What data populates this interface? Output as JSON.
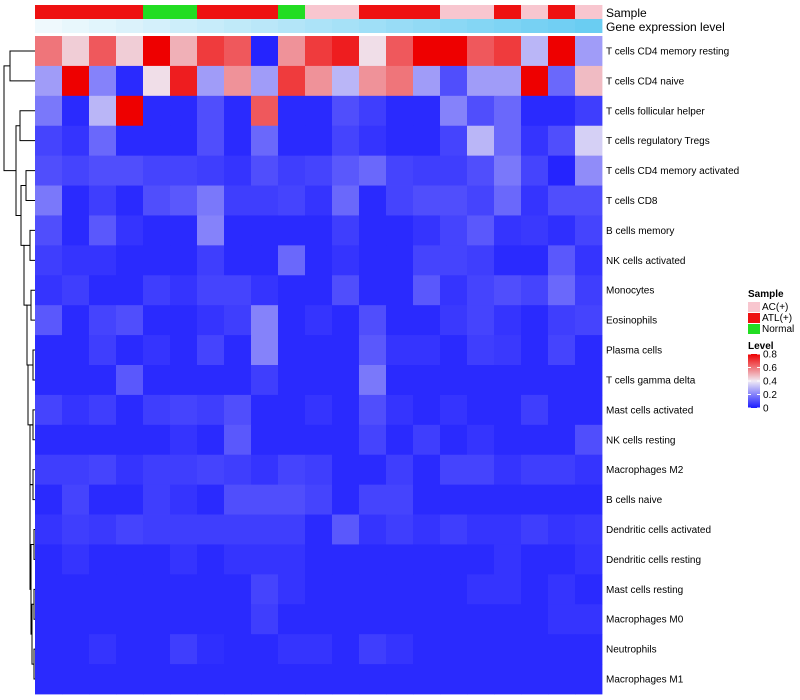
{
  "chart_data": {
    "type": "heatmap",
    "title": "",
    "annotation_rows": [
      "Sample",
      "Gene expression level"
    ],
    "sample_annotation": [
      "ATL(+)",
      "ATL(+)",
      "ATL(+)",
      "ATL(+)",
      "Normal",
      "Normal",
      "ATL(+)",
      "ATL(+)",
      "ATL(+)",
      "Normal",
      "AC(+)",
      "AC(+)",
      "ATL(+)",
      "ATL(+)",
      "ATL(+)",
      "AC(+)",
      "AC(+)",
      "ATL(+)",
      "AC(+)",
      "ATL(+)",
      "AC(+)"
    ],
    "expression_annotation": [
      0.02,
      0.06,
      0.1,
      0.14,
      0.18,
      0.22,
      0.26,
      0.3,
      0.34,
      0.38,
      0.42,
      0.46,
      0.5,
      0.54,
      0.58,
      0.62,
      0.66,
      0.7,
      0.74,
      0.78,
      0.82
    ],
    "sample_colors": {
      "AC(+)": "#f8c6cf",
      "ATL(+)": "#ee1111",
      "Normal": "#22dd22"
    },
    "expression_colors": [
      "#f2fafd",
      "#4cc3f0"
    ],
    "rows": [
      "T cells CD4 memory resting",
      "T cells CD4 naive",
      "T cells follicular helper",
      "T cells regulatory  Tregs",
      "T cells CD4 memory activated",
      "T cells CD8",
      "B cells memory",
      "NK cells activated",
      "Monocytes",
      "Eosinophils",
      "Plasma cells",
      "T cells gamma delta",
      "Mast cells activated",
      "NK cells resting",
      "Macrophages M2",
      "B cells naive",
      "Dendritic cells activated",
      "Dendritic cells resting",
      "Mast cells resting",
      "Macrophages M0",
      "Neutrophils",
      "Macrophages M1"
    ],
    "values": [
      [
        0.6,
        0.45,
        0.65,
        0.45,
        0.8,
        0.5,
        0.7,
        0.65,
        0.02,
        0.55,
        0.7,
        0.75,
        0.42,
        0.65,
        0.8,
        0.8,
        0.65,
        0.7,
        0.3,
        0.85,
        0.25
      ],
      [
        0.25,
        0.8,
        0.2,
        0.03,
        0.42,
        0.75,
        0.25,
        0.55,
        0.25,
        0.7,
        0.55,
        0.3,
        0.55,
        0.6,
        0.25,
        0.1,
        0.25,
        0.25,
        0.85,
        0.15,
        0.48
      ],
      [
        0.18,
        0.03,
        0.3,
        0.8,
        0.03,
        0.03,
        0.1,
        0.03,
        0.65,
        0.03,
        0.03,
        0.1,
        0.07,
        0.03,
        0.03,
        0.2,
        0.1,
        0.15,
        0.03,
        0.03,
        0.07
      ],
      [
        0.08,
        0.05,
        0.15,
        0.03,
        0.03,
        0.03,
        0.1,
        0.03,
        0.15,
        0.03,
        0.03,
        0.08,
        0.05,
        0.03,
        0.03,
        0.08,
        0.3,
        0.15,
        0.05,
        0.1,
        0.35
      ],
      [
        0.1,
        0.08,
        0.1,
        0.1,
        0.08,
        0.08,
        0.07,
        0.05,
        0.1,
        0.07,
        0.08,
        0.12,
        0.15,
        0.08,
        0.07,
        0.07,
        0.1,
        0.18,
        0.08,
        0.02,
        0.22
      ],
      [
        0.18,
        0.03,
        0.07,
        0.03,
        0.1,
        0.12,
        0.18,
        0.07,
        0.07,
        0.08,
        0.05,
        0.15,
        0.03,
        0.08,
        0.1,
        0.1,
        0.08,
        0.15,
        0.05,
        0.1,
        0.1
      ],
      [
        0.1,
        0.03,
        0.12,
        0.05,
        0.03,
        0.03,
        0.2,
        0.03,
        0.03,
        0.03,
        0.03,
        0.07,
        0.03,
        0.03,
        0.05,
        0.08,
        0.12,
        0.05,
        0.06,
        0.04,
        0.08
      ],
      [
        0.07,
        0.05,
        0.05,
        0.03,
        0.03,
        0.03,
        0.07,
        0.03,
        0.03,
        0.15,
        0.03,
        0.05,
        0.03,
        0.03,
        0.08,
        0.08,
        0.07,
        0.03,
        0.03,
        0.12,
        0.05
      ],
      [
        0.05,
        0.07,
        0.03,
        0.03,
        0.07,
        0.05,
        0.08,
        0.08,
        0.05,
        0.03,
        0.03,
        0.1,
        0.03,
        0.03,
        0.12,
        0.05,
        0.08,
        0.1,
        0.08,
        0.15,
        0.07
      ],
      [
        0.12,
        0.03,
        0.08,
        0.1,
        0.03,
        0.03,
        0.05,
        0.07,
        0.2,
        0.03,
        0.05,
        0.03,
        0.1,
        0.03,
        0.03,
        0.06,
        0.08,
        0.05,
        0.03,
        0.07,
        0.08
      ],
      [
        0.03,
        0.03,
        0.07,
        0.03,
        0.05,
        0.03,
        0.08,
        0.03,
        0.2,
        0.03,
        0.03,
        0.03,
        0.12,
        0.05,
        0.05,
        0.03,
        0.07,
        0.06,
        0.03,
        0.08,
        0.03
      ],
      [
        0.03,
        0.03,
        0.03,
        0.12,
        0.03,
        0.03,
        0.03,
        0.03,
        0.07,
        0.03,
        0.03,
        0.03,
        0.18,
        0.03,
        0.03,
        0.03,
        0.03,
        0.03,
        0.03,
        0.03,
        0.03
      ],
      [
        0.08,
        0.05,
        0.07,
        0.03,
        0.07,
        0.08,
        0.07,
        0.1,
        0.03,
        0.03,
        0.05,
        0.03,
        0.1,
        0.05,
        0.03,
        0.05,
        0.03,
        0.03,
        0.07,
        0.03,
        0.03
      ],
      [
        0.03,
        0.03,
        0.03,
        0.03,
        0.03,
        0.05,
        0.03,
        0.12,
        0.03,
        0.03,
        0.03,
        0.03,
        0.08,
        0.03,
        0.07,
        0.03,
        0.05,
        0.03,
        0.03,
        0.03,
        0.1
      ],
      [
        0.07,
        0.07,
        0.08,
        0.05,
        0.07,
        0.07,
        0.08,
        0.07,
        0.05,
        0.08,
        0.07,
        0.03,
        0.03,
        0.07,
        0.03,
        0.08,
        0.08,
        0.05,
        0.07,
        0.07,
        0.05
      ],
      [
        0.03,
        0.08,
        0.03,
        0.03,
        0.07,
        0.05,
        0.03,
        0.1,
        0.1,
        0.1,
        0.08,
        0.03,
        0.08,
        0.08,
        0.03,
        0.03,
        0.03,
        0.03,
        0.03,
        0.03,
        0.03
      ],
      [
        0.05,
        0.07,
        0.06,
        0.08,
        0.07,
        0.07,
        0.07,
        0.07,
        0.07,
        0.07,
        0.03,
        0.12,
        0.05,
        0.07,
        0.05,
        0.07,
        0.05,
        0.05,
        0.07,
        0.05,
        0.06
      ],
      [
        0.03,
        0.05,
        0.03,
        0.03,
        0.03,
        0.05,
        0.03,
        0.05,
        0.05,
        0.05,
        0.03,
        0.03,
        0.03,
        0.03,
        0.03,
        0.03,
        0.03,
        0.05,
        0.03,
        0.03,
        0.05
      ],
      [
        0.03,
        0.03,
        0.03,
        0.03,
        0.03,
        0.03,
        0.03,
        0.03,
        0.08,
        0.05,
        0.03,
        0.03,
        0.03,
        0.03,
        0.03,
        0.03,
        0.05,
        0.05,
        0.03,
        0.05,
        0.03
      ],
      [
        0.03,
        0.03,
        0.03,
        0.03,
        0.03,
        0.03,
        0.03,
        0.03,
        0.07,
        0.03,
        0.03,
        0.03,
        0.03,
        0.03,
        0.03,
        0.03,
        0.03,
        0.03,
        0.03,
        0.05,
        0.05
      ],
      [
        0.03,
        0.03,
        0.05,
        0.03,
        0.03,
        0.07,
        0.04,
        0.03,
        0.03,
        0.05,
        0.05,
        0.03,
        0.07,
        0.05,
        0.03,
        0.03,
        0.03,
        0.03,
        0.03,
        0.03,
        0.03
      ],
      [
        0.03,
        0.03,
        0.03,
        0.03,
        0.03,
        0.03,
        0.03,
        0.03,
        0.03,
        0.03,
        0.03,
        0.03,
        0.03,
        0.03,
        0.03,
        0.03,
        0.03,
        0.03,
        0.03,
        0.03,
        0.03
      ]
    ],
    "color_scale": {
      "low": "#1a1aff",
      "mid": "#f0eaf4",
      "high": "#ee0000",
      "min": 0,
      "max": 0.8
    },
    "legend": {
      "sample_title": "Sample",
      "sample_entries": [
        "AC(+)",
        "ATL(+)",
        "Normal"
      ],
      "level_title": "Level",
      "level_ticks": [
        "0.8",
        "0.6",
        "0.4",
        "0.2",
        "0"
      ],
      "level_tick_values": [
        0.8,
        0.6,
        0.4,
        0.2,
        0
      ],
      "position": "right"
    },
    "row_dendrogram": true,
    "column_dendrogram": false
  }
}
